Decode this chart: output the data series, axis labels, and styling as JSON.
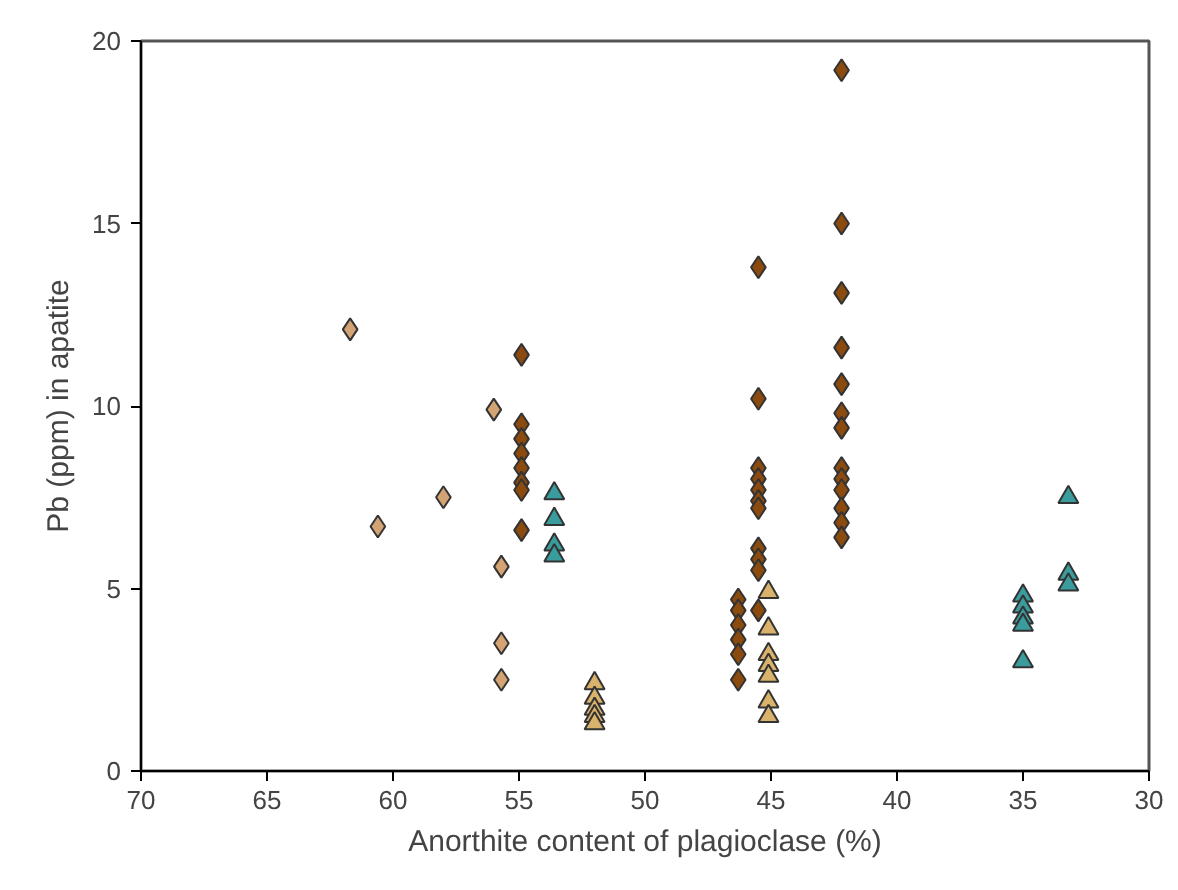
{
  "chart_data": {
    "type": "scatter",
    "xlabel": "Anorthite content of plagioclase (%)",
    "ylabel": "Pb (ppm) in apatite",
    "xlim": [
      70,
      30
    ],
    "xticks": [
      70,
      65,
      60,
      55,
      50,
      45,
      40,
      35,
      30
    ],
    "ylim": [
      0,
      20
    ],
    "yticks": [
      0,
      5,
      10,
      15,
      20
    ],
    "grid": false,
    "series": [
      {
        "color": "#d4a373",
        "marker": "diamond",
        "x": [
          61.7,
          60.6,
          58.0,
          56.0,
          55.7,
          55.7,
          55.7
        ],
        "values": [
          12.1,
          6.7,
          7.5,
          9.9,
          5.6,
          3.5,
          2.5
        ]
      },
      {
        "color": "#8b4a0e",
        "marker": "diamond",
        "x": [
          54.9,
          54.9,
          54.9,
          54.9,
          54.9,
          54.9,
          54.9,
          54.9,
          45.5,
          45.5,
          45.5,
          45.5,
          45.5,
          45.5,
          45.5,
          45.5,
          45.5,
          45.5,
          45.5,
          46.3,
          46.3,
          46.3,
          46.3,
          46.3,
          46.3,
          42.2,
          42.2,
          42.2,
          42.2,
          42.2,
          42.2,
          42.2,
          42.2,
          42.2,
          42.2,
          42.2,
          42.2,
          42.2
        ],
        "values": [
          11.4,
          9.5,
          9.1,
          8.7,
          8.3,
          7.9,
          7.7,
          6.6,
          13.8,
          10.2,
          8.3,
          8.0,
          7.7,
          7.4,
          7.2,
          6.1,
          5.8,
          5.5,
          4.4,
          4.7,
          4.4,
          4.0,
          3.6,
          3.2,
          2.5,
          19.2,
          15.0,
          13.1,
          11.6,
          10.6,
          9.8,
          9.4,
          8.3,
          8.0,
          7.7,
          7.2,
          6.8,
          6.4
        ]
      },
      {
        "color": "#d9b36b",
        "marker": "triangle",
        "x": [
          52.0,
          52.0,
          52.0,
          52.0,
          52.0,
          45.1,
          45.1,
          45.1,
          45.1,
          45.1,
          45.1,
          45.1
        ],
        "values": [
          2.4,
          2.0,
          1.7,
          1.5,
          1.3,
          4.9,
          3.9,
          3.2,
          2.9,
          2.6,
          1.9,
          1.5
        ]
      },
      {
        "color": "#3a9c9c",
        "marker": "triangle",
        "x": [
          53.6,
          53.6,
          53.6,
          53.6,
          35.0,
          35.0,
          35.0,
          35.0,
          35.0,
          33.2,
          33.2,
          33.2
        ],
        "values": [
          7.6,
          6.9,
          6.2,
          5.9,
          4.8,
          4.5,
          4.2,
          4.0,
          3.0,
          7.5,
          5.4,
          5.1
        ]
      }
    ]
  }
}
